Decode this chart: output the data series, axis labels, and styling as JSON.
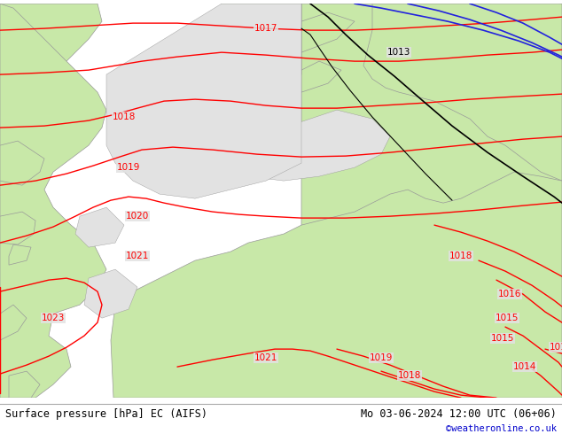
{
  "title_left": "Surface pressure [hPa] EC (AIFS)",
  "title_right": "Mo 03-06-2024 12:00 UTC (06+06)",
  "credit": "©weatheronline.co.uk",
  "bg_color": "#e2e2e2",
  "land_green_color": "#c8e8a8",
  "land_outline_color": "#999999",
  "isobar_color_red": "#ff0000",
  "isobar_color_black": "#000000",
  "isobar_color_blue": "#2222dd",
  "footer_fontsize": 8.5,
  "credit_fontsize": 7.5,
  "credit_color": "#0000cc",
  "figsize": [
    6.34,
    4.9
  ],
  "dpi": 100
}
